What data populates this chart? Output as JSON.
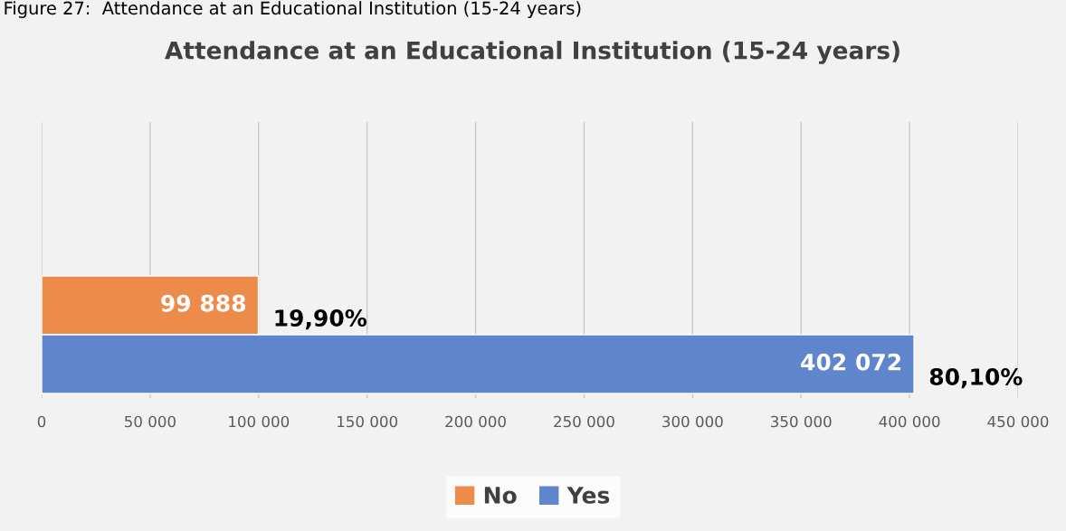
{
  "chart_data": {
    "type": "bar",
    "orientation": "horizontal",
    "title": "Attendance at an Educational Institution (15-24 years)",
    "annotations": [
      "Figure 27:  Attendance at an Educational Institution (15-24 years)",
      {
        "text": "19,90%",
        "x": 99888
      },
      {
        "text": "80,10%",
        "x": 402072
      }
    ],
    "categories": [
      null
    ],
    "series": [
      {
        "name": "No",
        "color": "#ed8b4a",
        "values": [
          99888
        ],
        "value_labels": [
          "99 888"
        ]
      },
      {
        "name": "Yes",
        "color": "#5f86cc",
        "values": [
          402072
        ],
        "value_labels": [
          "402 072"
        ]
      }
    ],
    "xlim": [
      0,
      450000
    ],
    "xticks": [
      {
        "value": 0,
        "label": "0"
      },
      {
        "value": 50000,
        "label": "50 000"
      },
      {
        "value": 100000,
        "label": "100 000"
      },
      {
        "value": 150000,
        "label": "150 000"
      },
      {
        "value": 200000,
        "label": "200 000"
      },
      {
        "value": 250000,
        "label": "250 000"
      },
      {
        "value": 300000,
        "label": "300 000"
      },
      {
        "value": 350000,
        "label": "350 000"
      },
      {
        "value": 400000,
        "label": "400 000"
      },
      {
        "value": 450000,
        "label": "450 000"
      }
    ],
    "grid": "x",
    "legend": "bottom"
  }
}
